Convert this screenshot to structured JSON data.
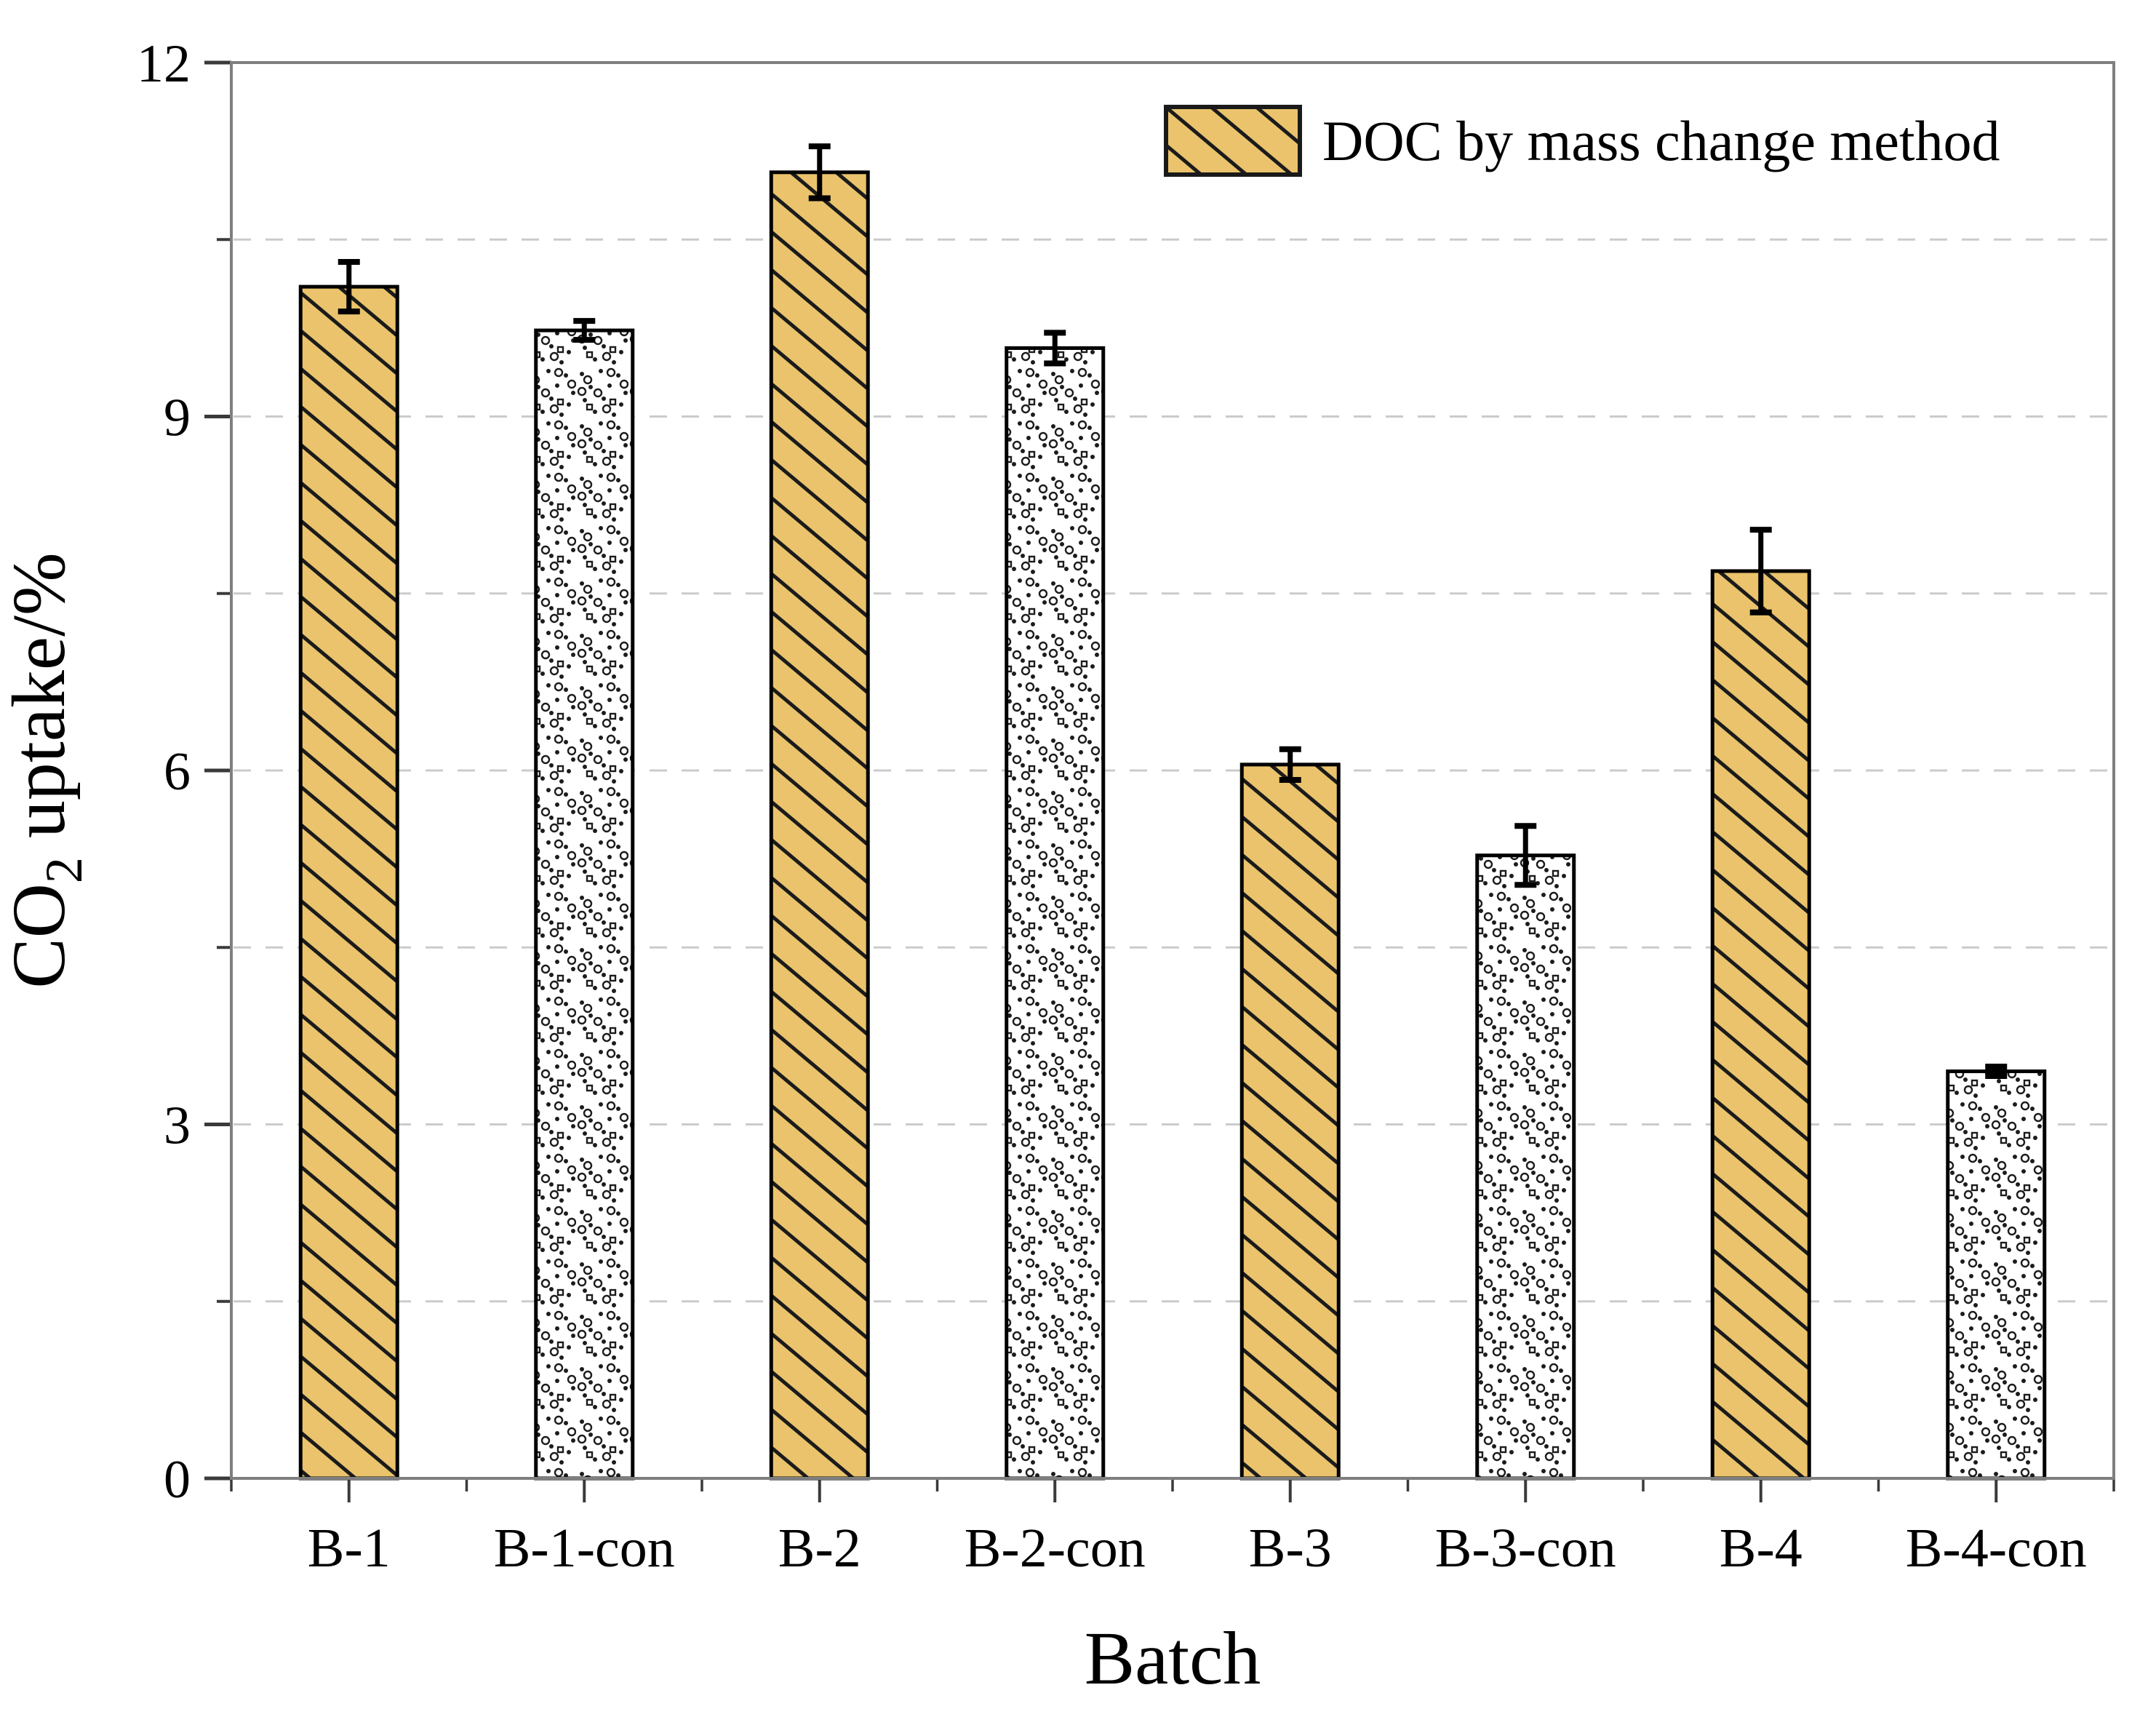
{
  "chart_data": {
    "type": "bar",
    "title": "",
    "xlabel": "Batch",
    "ylabel": "CO2 uptake/%",
    "ylabel_rich": {
      "pre": "CO",
      "sub": "2",
      "post": " uptake/%"
    },
    "categories": [
      "B-1",
      "B-1-con",
      "B-2",
      "B-2-con",
      "B-3",
      "B-3-con",
      "B-4",
      "B-4-con"
    ],
    "series": [
      {
        "name": "DOC by mass change method",
        "values": [
          10.1,
          9.73,
          11.07,
          9.58,
          6.05,
          5.28,
          7.69,
          3.45
        ],
        "errors": [
          0.21,
          0.08,
          0.22,
          0.13,
          0.13,
          0.25,
          0.35,
          0.04
        ],
        "bar_styles": [
          "hatch",
          "stipple",
          "hatch",
          "stipple",
          "hatch",
          "stipple",
          "hatch",
          "stipple"
        ]
      }
    ],
    "ylim": [
      0,
      12
    ],
    "yticks_major": [
      0,
      3,
      6,
      9,
      12
    ],
    "ytick_labels": [
      "0",
      "3",
      "6",
      "9",
      "12"
    ],
    "yticks_minor": [
      1.5,
      4.5,
      7.5,
      10.5
    ],
    "gridlines": [
      1.5,
      3,
      4.5,
      6,
      7.5,
      9,
      10.5
    ],
    "grid_style": "horizontal dashed",
    "legend": {
      "label": "DOC by mass change method",
      "position": "top-right",
      "swatch": "hatch"
    },
    "colors": {
      "hatch_fill": "#eac36c",
      "hatch_line": "#1b1b1b",
      "stipple_fill": "#ffffff",
      "stipple_mark": "#1c1c1c",
      "bar_border": "#000000",
      "error_bar": "#000000",
      "frame": "#7f7f7f",
      "grid": "#cbcbcb",
      "tick": "#3a3a3a",
      "text": "#000000"
    }
  }
}
